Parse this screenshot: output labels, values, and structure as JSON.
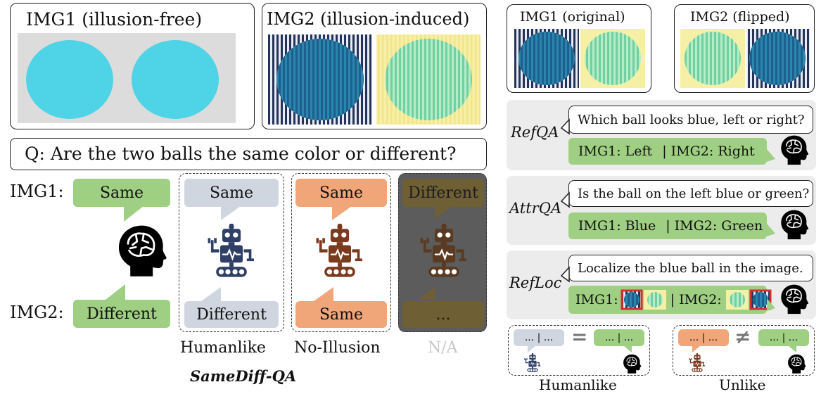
{
  "left_panel": {
    "img1_title": "IMG1 (illusion-free)",
    "img2_title": "IMG2 (illusion-induced)",
    "question": "Q: Are the two balls the same color or different?",
    "row_img1": "IMG1:",
    "row_img2": "IMG2:",
    "human": {
      "top": "Same",
      "bottom": "Different"
    },
    "humanlike": {
      "top": "Same",
      "bottom": "Different",
      "label": "Humanlike"
    },
    "no_illusion": {
      "top": "Same",
      "bottom": "Same",
      "label": "No-Illusion"
    },
    "na": {
      "top": "Different",
      "bottom": "...",
      "label": "N/A"
    },
    "caption": "SameDiff-QA"
  },
  "right_panel": {
    "img1_title": "IMG1 (original)",
    "img2_title": "IMG2 (flipped)",
    "refqa": {
      "label": "RefQA",
      "question": "Which ball looks blue, left or right?",
      "answer_img1": "IMG1: Left",
      "answer_img2": "| IMG2: Right"
    },
    "attrqa": {
      "label": "AttrQA",
      "question": "Is the ball on the left blue or green?",
      "answer_img1": "IMG1: Blue",
      "answer_img2": "| IMG2: Green"
    },
    "refloc": {
      "label": "RefLoc",
      "question": "Localize the blue ball in the image.",
      "answer_img1": "IMG1:",
      "answer_sep": "| IMG2:"
    },
    "legend": {
      "humanlike": {
        "left": "... | ...",
        "op": "=",
        "right": "... | ...",
        "label": "Humanlike"
      },
      "unlike": {
        "left": "... | ...",
        "op": "≠",
        "right": "... | ...",
        "label": "Unlike"
      }
    }
  },
  "colors": {
    "cyan_ball": "#4fd3e6",
    "dark_blue_ball": "#1f6e9a",
    "green_ball": "#8fdcb0",
    "yellow_bg": "#f5f0a6",
    "answer_green": "#9fcf82",
    "robot_navy": "#2f3f66",
    "robot_brown": "#7a3a1e",
    "na_overlay": "#5c5c5c",
    "highlight_red": "#d32f2f"
  },
  "icons": [
    "brain-head-icon",
    "robot-icon"
  ]
}
